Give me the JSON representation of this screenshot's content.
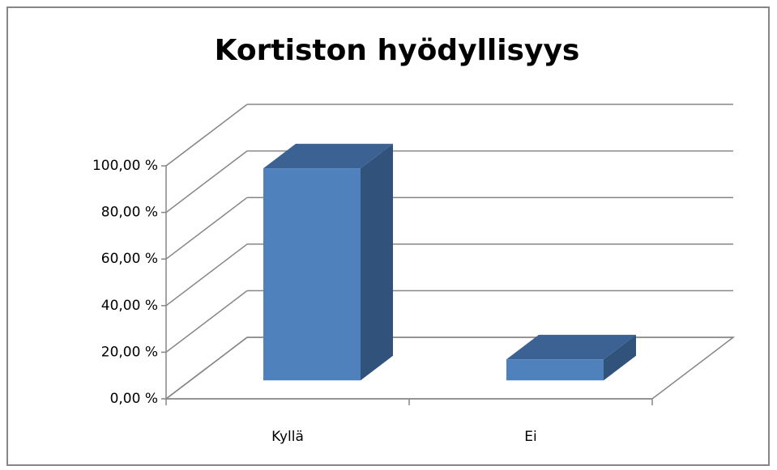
{
  "chart_data": {
    "type": "bar3d",
    "title": "Kortiston hyödyllisyys",
    "categories": [
      "Kyllä",
      "Ei"
    ],
    "values": [
      91,
      9
    ],
    "color": "#4f81bd",
    "ylim": [
      0,
      100
    ],
    "yticks": [
      {
        "value": 0,
        "label": "0,00 %"
      },
      {
        "value": 20,
        "label": "20,00 %"
      },
      {
        "value": 40,
        "label": "40,00 %"
      },
      {
        "value": 60,
        "label": "60,00 %"
      },
      {
        "value": 80,
        "label": "80,00 %"
      },
      {
        "value": 100,
        "label": "100,00 %"
      }
    ],
    "grid": true
  }
}
